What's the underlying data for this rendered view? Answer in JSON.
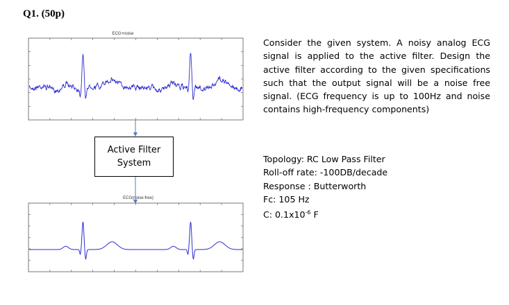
{
  "question": {
    "title": "Q1. (50p)"
  },
  "diagram": {
    "top_plot_label": "ECG+noise",
    "bottom_plot_label": "ECG(noise-free)",
    "filter_box": {
      "line1": "Active Filter",
      "line2": "System"
    },
    "signal_color": "#2b2bd1",
    "arrow_color": "#4a7fc1"
  },
  "description": "Consider the given system. A noisy analog ECG signal is applied to the active filter. Design the active filter according to the given specifications such that the output signal will be a noise free signal. (ECG frequency is up to 100Hz and noise contains high-frequency components)",
  "specs": {
    "topology": "Topology: RC Low Pass Filter",
    "rolloff": "Roll-off rate: -100DB/decade",
    "response": "Response : Butterworth",
    "fc": "Fc: 105 Hz",
    "c_prefix": "C: 0.1x10",
    "c_exp": "-6",
    "c_unit": " F"
  }
}
